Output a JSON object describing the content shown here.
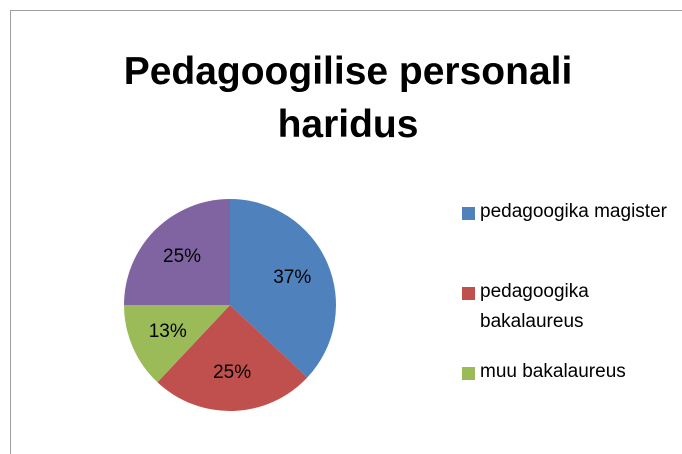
{
  "chart_data": {
    "type": "pie",
    "title": "Pedagoogilise personali haridus",
    "categories": [
      "pedagoogika magister",
      "pedagoogika bakalaureus",
      "muu bakalaureus",
      null
    ],
    "values": [
      37,
      25,
      13,
      25
    ],
    "value_labels": [
      "37%",
      "25%",
      "13%",
      "25%"
    ],
    "colors": [
      "#4f81bd",
      "#c0504d",
      "#9bbb59",
      "#8064a2"
    ],
    "legend": "right"
  }
}
